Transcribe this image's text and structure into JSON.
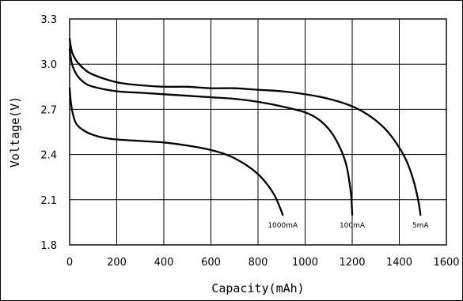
{
  "chart_data": {
    "type": "line",
    "title": "",
    "xlabel": "Capacity(mAh)",
    "ylabel": "Voltage(V)",
    "xlim": [
      0,
      1600
    ],
    "ylim": [
      1.8,
      3.3
    ],
    "x_ticks": [
      0,
      200,
      400,
      600,
      800,
      1000,
      1200,
      1400,
      1600
    ],
    "y_ticks": [
      1.8,
      2.1,
      2.4,
      2.7,
      3.0,
      3.3
    ],
    "y_tick_labels": [
      "1.8",
      "2.1",
      "2.4",
      "2.7",
      "3.0",
      "3.3"
    ],
    "grid": true,
    "legend": "none",
    "series": [
      {
        "name": "1000mA",
        "points": [
          [
            0,
            2.84
          ],
          [
            5,
            2.75
          ],
          [
            15,
            2.66
          ],
          [
            30,
            2.6
          ],
          [
            60,
            2.56
          ],
          [
            100,
            2.53
          ],
          [
            150,
            2.51
          ],
          [
            200,
            2.5
          ],
          [
            300,
            2.49
          ],
          [
            400,
            2.48
          ],
          [
            500,
            2.46
          ],
          [
            600,
            2.43
          ],
          [
            680,
            2.39
          ],
          [
            750,
            2.33
          ],
          [
            800,
            2.27
          ],
          [
            840,
            2.2
          ],
          [
            870,
            2.13
          ],
          [
            890,
            2.06
          ],
          [
            905,
            2.0
          ]
        ]
      },
      {
        "name": "100mA",
        "points": [
          [
            0,
            3.1
          ],
          [
            10,
            3.0
          ],
          [
            30,
            2.93
          ],
          [
            60,
            2.88
          ],
          [
            100,
            2.85
          ],
          [
            200,
            2.82
          ],
          [
            300,
            2.81
          ],
          [
            400,
            2.8
          ],
          [
            500,
            2.79
          ],
          [
            600,
            2.78
          ],
          [
            700,
            2.77
          ],
          [
            800,
            2.75
          ],
          [
            900,
            2.72
          ],
          [
            1000,
            2.68
          ],
          [
            1060,
            2.63
          ],
          [
            1110,
            2.55
          ],
          [
            1150,
            2.44
          ],
          [
            1175,
            2.33
          ],
          [
            1190,
            2.2
          ],
          [
            1197,
            2.1
          ],
          [
            1200,
            2.0
          ]
        ]
      },
      {
        "name": "5mA",
        "points": [
          [
            0,
            3.17
          ],
          [
            10,
            3.08
          ],
          [
            30,
            3.02
          ],
          [
            60,
            2.97
          ],
          [
            100,
            2.93
          ],
          [
            200,
            2.88
          ],
          [
            300,
            2.86
          ],
          [
            400,
            2.85
          ],
          [
            500,
            2.85
          ],
          [
            600,
            2.84
          ],
          [
            700,
            2.84
          ],
          [
            800,
            2.83
          ],
          [
            900,
            2.82
          ],
          [
            1000,
            2.8
          ],
          [
            1100,
            2.77
          ],
          [
            1200,
            2.72
          ],
          [
            1280,
            2.65
          ],
          [
            1340,
            2.57
          ],
          [
            1390,
            2.47
          ],
          [
            1430,
            2.36
          ],
          [
            1460,
            2.23
          ],
          [
            1480,
            2.1
          ],
          [
            1490,
            2.0
          ]
        ]
      }
    ]
  }
}
